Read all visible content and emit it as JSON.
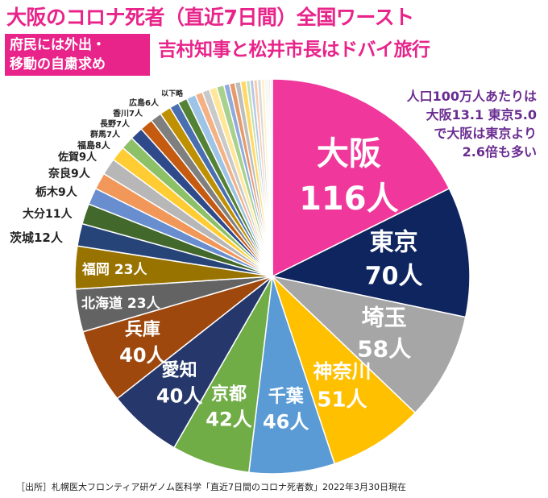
{
  "title": "大阪のコロナ死者（直近7日間）全国ワースト",
  "badge": {
    "line1": "府民には外出・",
    "line2": "移動の自粛求め"
  },
  "subtitle": "吉村知事と松井市長はドバイ旅行",
  "annotation": {
    "line1": "人口100万人あたりは",
    "line2": "大阪13.1 東京5.0",
    "line3": "で大阪は東京より",
    "line4": "2.6倍も多い"
  },
  "source": "［出所］札幌医大フロンティア研ゲノム医科学「直近7日間のコロナ死者数」2022年3月30日現在",
  "chart_data": {
    "type": "pie",
    "start_angle_deg": 0,
    "slices": [
      {
        "name": "大阪",
        "value": 116,
        "value_label": "116人",
        "color": "#f0389c"
      },
      {
        "name": "東京",
        "value": 70,
        "value_label": "70人",
        "color": "#0f2560"
      },
      {
        "name": "埼玉",
        "value": 58,
        "value_label": "58人",
        "color": "#a6a6a6"
      },
      {
        "name": "神奈川",
        "value": 51,
        "value_label": "51人",
        "color": "#ffc000"
      },
      {
        "name": "千葉",
        "value": 46,
        "value_label": "46人",
        "color": "#5b9bd5"
      },
      {
        "name": "京都",
        "value": 42,
        "value_label": "42人",
        "color": "#70ad47"
      },
      {
        "name": "愛知",
        "value": 40,
        "value_label": "40人",
        "color": "#26386b"
      },
      {
        "name": "兵庫",
        "value": 40,
        "value_label": "40人",
        "color": "#9e480e"
      },
      {
        "name": "北海道",
        "value": 23,
        "value_label": "23人",
        "color": "#636363"
      },
      {
        "name": "福岡",
        "value": 23,
        "value_label": "23人",
        "color": "#997300"
      },
      {
        "name": "茨城",
        "value": 12,
        "value_label": "茨城12人",
        "color": "#264478"
      },
      {
        "name": "大分",
        "value": 11,
        "value_label": "大分11人",
        "color": "#43682b"
      },
      {
        "name": "栃木",
        "value": 9,
        "value_label": "栃木9人",
        "color": "#698ed0"
      },
      {
        "name": "奈良",
        "value": 9,
        "value_label": "奈良9人",
        "color": "#f1975a"
      },
      {
        "name": "佐賀",
        "value": 9,
        "value_label": "佐賀9人",
        "color": "#b7b7b7"
      },
      {
        "name": "福島",
        "value": 8,
        "value_label": "福島8人",
        "color": "#ffcd33"
      },
      {
        "name": "群馬",
        "value": 7,
        "value_label": "群馬7人",
        "color": "#8cc168"
      },
      {
        "name": "長野",
        "value": 7,
        "value_label": "長野7人",
        "color": "#2e4a8a"
      },
      {
        "name": "香川",
        "value": 7,
        "value_label": "香川7人",
        "color": "#c55a11"
      },
      {
        "name": "広島",
        "value": 6,
        "value_label": "広島6人",
        "color": "#7f7f7f"
      },
      {
        "name": "other1",
        "value": 6,
        "value_label": "",
        "color": "#bf9000"
      },
      {
        "name": "other2",
        "value": 5,
        "value_label": "",
        "color": "#4a6fb0"
      },
      {
        "name": "other3",
        "value": 5,
        "value_label": "",
        "color": "#548235"
      },
      {
        "name": "other4",
        "value": 5,
        "value_label": "",
        "color": "#9dc3e6"
      },
      {
        "name": "other5",
        "value": 4,
        "value_label": "",
        "color": "#f4b183"
      },
      {
        "name": "other6",
        "value": 4,
        "value_label": "",
        "color": "#c9c9c9"
      },
      {
        "name": "other7",
        "value": 4,
        "value_label": "",
        "color": "#ffe699"
      },
      {
        "name": "other8",
        "value": 4,
        "value_label": "",
        "color": "#a9d18e"
      },
      {
        "name": "other9",
        "value": 3,
        "value_label": "",
        "color": "#8faadc"
      },
      {
        "name": "other10",
        "value": 3,
        "value_label": "",
        "color": "#e69a6a"
      },
      {
        "name": "other11",
        "value": 3,
        "value_label": "",
        "color": "#bdbdbd"
      },
      {
        "name": "other12",
        "value": 3,
        "value_label": "",
        "color": "#ffd966"
      },
      {
        "name": "other13",
        "value": 2,
        "value_label": "",
        "color": "#c5e0b4"
      },
      {
        "name": "other14",
        "value": 2,
        "value_label": "",
        "color": "#b4c7e7"
      },
      {
        "name": "other15",
        "value": 2,
        "value_label": "",
        "color": "#f8cbad"
      },
      {
        "name": "other16",
        "value": 2,
        "value_label": "",
        "color": "#d9d9d9"
      },
      {
        "name": "other17",
        "value": 2,
        "value_label": "",
        "color": "#fff2cc"
      },
      {
        "name": "other18",
        "value": 1,
        "value_label": "",
        "color": "#e2f0d9"
      },
      {
        "name": "other19",
        "value": 1,
        "value_label": "",
        "color": "#dae3f3"
      },
      {
        "name": "other20",
        "value": 1,
        "value_label": "",
        "color": "#fbe5d6"
      },
      {
        "name": "other21",
        "value": 1,
        "value_label": "",
        "color": "#ededed"
      }
    ],
    "others_label": "以下略"
  }
}
